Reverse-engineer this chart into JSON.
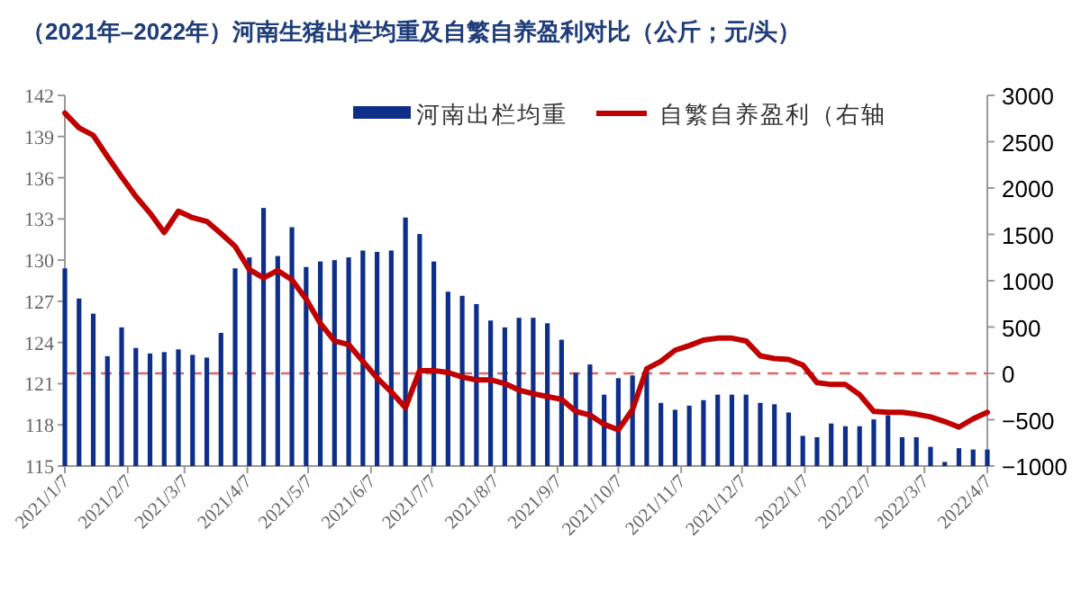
{
  "chart_data": {
    "type": "bar",
    "title": "（2021年–2022年）河南生猪出栏均重及自繁自养盈利对比（公斤；元/头）",
    "x": [
      "2021-01-07",
      "2021-01-14",
      "2021-01-21",
      "2021-01-28",
      "2021-02-04",
      "2021-02-11",
      "2021-02-18",
      "2021-02-25",
      "2021-03-04",
      "2021-03-11",
      "2021-03-18",
      "2021-03-25",
      "2021-04-01",
      "2021-04-08",
      "2021-04-15",
      "2021-04-22",
      "2021-04-29",
      "2021-05-06",
      "2021-05-13",
      "2021-05-20",
      "2021-05-27",
      "2021-06-03",
      "2021-06-10",
      "2021-06-17",
      "2021-06-24",
      "2021-07-01",
      "2021-07-08",
      "2021-07-15",
      "2021-07-22",
      "2021-07-29",
      "2021-08-05",
      "2021-08-12",
      "2021-08-19",
      "2021-08-26",
      "2021-09-02",
      "2021-09-09",
      "2021-09-16",
      "2021-09-23",
      "2021-09-30",
      "2021-10-07",
      "2021-10-14",
      "2021-10-21",
      "2021-10-28",
      "2021-11-04",
      "2021-11-11",
      "2021-11-18",
      "2021-11-25",
      "2021-12-02",
      "2021-12-09",
      "2021-12-16",
      "2021-12-23",
      "2021-12-30",
      "2022-01-06",
      "2022-01-13",
      "2022-01-20",
      "2022-01-27",
      "2022-02-03",
      "2022-02-10",
      "2022-02-17",
      "2022-02-24",
      "2022-03-03",
      "2022-03-10",
      "2022-03-17",
      "2022-03-24",
      "2022-03-31",
      "2022-04-07"
    ],
    "series": [
      {
        "name": "河南出栏均重",
        "color": "#0d2f8a",
        "values": [
          129.4,
          127.2,
          126.1,
          123.0,
          125.1,
          123.6,
          123.2,
          123.3,
          123.5,
          123.1,
          122.9,
          124.7,
          129.4,
          130.2,
          133.8,
          130.3,
          132.4,
          129.5,
          129.9,
          130.0,
          130.2,
          130.7,
          130.6,
          130.7,
          133.1,
          131.9,
          129.9,
          127.7,
          127.4,
          126.8,
          125.6,
          125.1,
          125.8,
          125.8,
          125.4,
          124.2,
          121.8,
          122.4,
          120.2,
          121.4,
          121.6,
          122.2,
          119.6,
          119.1,
          119.4,
          119.8,
          120.2,
          120.2,
          120.2,
          119.6,
          119.5,
          118.9,
          117.2,
          117.1,
          118.1,
          117.9,
          117.9,
          118.4,
          118.7,
          117.1,
          117.1,
          116.4,
          115.3,
          116.3,
          116.2,
          116.2
        ]
      },
      {
        "name": "自繁自养盈利（右轴",
        "type": "line",
        "axis": "y2",
        "color": "#c00000",
        "values": [
          2810,
          2650,
          2570,
          2340,
          2120,
          1910,
          1730,
          1520,
          1750,
          1680,
          1640,
          1510,
          1370,
          1120,
          1030,
          1110,
          1010,
          800,
          540,
          350,
          310,
          130,
          -50,
          -200,
          -370,
          30,
          30,
          10,
          -40,
          -70,
          -70,
          -110,
          -180,
          -220,
          -250,
          -280,
          -410,
          -450,
          -550,
          -610,
          -390,
          50,
          130,
          250,
          300,
          360,
          380,
          380,
          350,
          190,
          160,
          150,
          90,
          -100,
          -120,
          -120,
          -230,
          -410,
          -420,
          -420,
          -440,
          -470,
          -520,
          -580,
          -490,
          -420
        ]
      }
    ],
    "xlim": [
      "2021-01-07",
      "2022-04-07"
    ],
    "xticks": [
      {
        "value": "2021-01-07",
        "label": "2021/1/7"
      },
      {
        "value": "2021-02-07",
        "label": "2021/2/7"
      },
      {
        "value": "2021-03-07",
        "label": "2021/3/7"
      },
      {
        "value": "2021-04-07",
        "label": "2021/4/7"
      },
      {
        "value": "2021-05-07",
        "label": "2021/5/7"
      },
      {
        "value": "2021-06-07",
        "label": "2021/6/7"
      },
      {
        "value": "2021-07-07",
        "label": "2021/7/7"
      },
      {
        "value": "2021-08-07",
        "label": "2021/8/7"
      },
      {
        "value": "2021-09-07",
        "label": "2021/9/7"
      },
      {
        "value": "2021-10-07",
        "label": "2021/10/7"
      },
      {
        "value": "2021-11-07",
        "label": "2021/11/7"
      },
      {
        "value": "2021-12-07",
        "label": "2021/12/7"
      },
      {
        "value": "2022-01-07",
        "label": "2022/1/7"
      },
      {
        "value": "2022-02-07",
        "label": "2022/2/7"
      },
      {
        "value": "2022-03-07",
        "label": "2022/3/7"
      },
      {
        "value": "2022-04-07",
        "label": "2022/4/7"
      }
    ],
    "ylim": [
      115,
      142
    ],
    "yticks": [
      115,
      118,
      121,
      124,
      127,
      130,
      133,
      136,
      139,
      142
    ],
    "y2lim": [
      -1000,
      3000
    ],
    "y2ticks": [
      -1000,
      -500,
      0,
      500,
      1000,
      1500,
      2000,
      2500,
      3000
    ],
    "ref_lines": [
      {
        "axis": "y2",
        "value": 0,
        "color": "#e06666",
        "line_style": "dashed"
      }
    ],
    "legend": "top"
  }
}
